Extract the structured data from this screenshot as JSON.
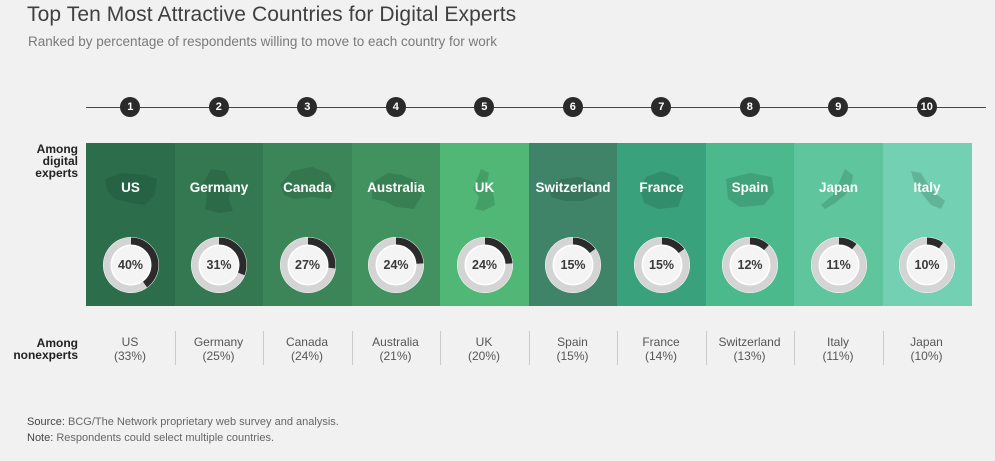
{
  "title": "Top Ten Most Attractive Countries for Digital Experts",
  "subtitle": "Ranked by percentage of respondents willing to move to each country for work",
  "row_labels": {
    "experts": [
      "Among",
      "digital",
      "experts"
    ],
    "nonexperts": [
      "Among",
      "nonexperts"
    ]
  },
  "panel_colors": [
    "#2c6e4c",
    "#347851",
    "#3c8558",
    "#41925f",
    "#50b776",
    "#3f8469",
    "#3aa17d",
    "#4cb98c",
    "#5ec59c",
    "#74d0b2"
  ],
  "silhouettes": [
    "us-map-icon",
    "germany-map-icon",
    "canada-map-icon",
    "australia-map-icon",
    "uk-map-icon",
    "switzerland-map-icon",
    "france-map-icon",
    "spain-map-icon",
    "japan-map-icon",
    "italy-map-icon"
  ],
  "chart_data": {
    "type": "donut-ranking",
    "experts": {
      "ranks": [
        "1",
        "2",
        "3",
        "4",
        "5",
        "6",
        "7",
        "8",
        "9",
        "10"
      ],
      "countries": [
        "US",
        "Germany",
        "Canada",
        "Australia",
        "UK",
        "Switzerland",
        "France",
        "Spain",
        "Japan",
        "Italy"
      ],
      "values": [
        40,
        31,
        27,
        24,
        24,
        15,
        15,
        12,
        11,
        10
      ],
      "labels": [
        "40%",
        "31%",
        "27%",
        "24%",
        "24%",
        "15%",
        "15%",
        "12%",
        "11%",
        "10%"
      ]
    },
    "nonexperts": {
      "countries": [
        "US",
        "Germany",
        "Canada",
        "Australia",
        "UK",
        "Spain",
        "France",
        "Switzerland",
        "Italy",
        "Japan"
      ],
      "values": [
        33,
        25,
        24,
        21,
        20,
        15,
        14,
        13,
        11,
        10
      ],
      "labels": [
        "(33%)",
        "(25%)",
        "(24%)",
        "(21%)",
        "(20%)",
        "(15%)",
        "(14%)",
        "(13%)",
        "(11%)",
        "(10%)"
      ]
    }
  },
  "footer": {
    "source_label": "Source:",
    "source_text": "BCG/The Network proprietary web survey and analysis.",
    "note_label": "Note:",
    "note_text": "Respondents could select multiple countries."
  }
}
